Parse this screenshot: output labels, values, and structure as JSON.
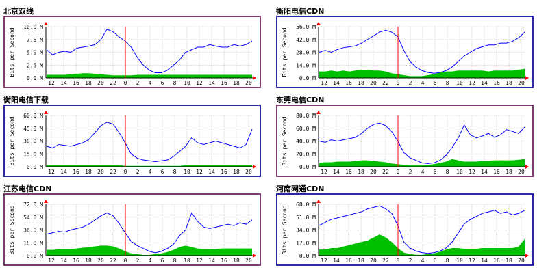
{
  "colors": {
    "frame_purple": "#7d3c6e",
    "frame_blue": "#2a2aa8",
    "in_series": "#00c000",
    "out_series": "#0000ff",
    "now_marker": "#ff0000",
    "grid": "#c8c8c8"
  },
  "axis": {
    "ylabel": "Bits per Second",
    "x_ticks": [
      "12",
      "14",
      "16",
      "18",
      "20",
      "22",
      "0",
      "2",
      "4",
      "6",
      "8",
      "10",
      "12",
      "14",
      "16",
      "18",
      "20"
    ]
  },
  "chart_data": [
    {
      "type": "area",
      "title": "北京双线",
      "frame": "purple",
      "ylabel": "Bits per Second",
      "y_ticks": [
        "0.0 M",
        "2.5 M",
        "5.0 M",
        "7.5 M",
        "10.0 M"
      ],
      "ylim": [
        0,
        10
      ],
      "y_unit": "M",
      "x_ticks": [
        "12",
        "14",
        "16",
        "18",
        "20",
        "22",
        "0",
        "2",
        "4",
        "6",
        "8",
        "10",
        "12",
        "14",
        "16",
        "18",
        "20"
      ],
      "now_index": 6,
      "series": [
        {
          "name": "in",
          "values": [
            0.6,
            0.6,
            0.6,
            0.6,
            0.7,
            0.8,
            0.9,
            0.9,
            0.8,
            0.7,
            0.6,
            0.5,
            0.5,
            0.5,
            0.5,
            0.6,
            0.6,
            0.6,
            0.6,
            0.6,
            0.6,
            0.6,
            0.6,
            0.6,
            0.6,
            0.6,
            0.6,
            0.6,
            0.6,
            0.6,
            0.6,
            0.6,
            0.6,
            0.6,
            0.6
          ]
        },
        {
          "name": "out",
          "values": [
            5.5,
            4.5,
            5.0,
            5.2,
            5.0,
            5.8,
            6.0,
            6.2,
            6.5,
            7.5,
            9.5,
            9.0,
            8.0,
            7.2,
            6.0,
            4.0,
            2.5,
            1.5,
            1.0,
            1.0,
            1.5,
            2.5,
            3.5,
            5.0,
            5.5,
            6.0,
            6.0,
            6.5,
            6.2,
            6.0,
            6.0,
            6.5,
            6.2,
            6.5,
            7.2
          ]
        }
      ]
    },
    {
      "type": "area",
      "title": "衡阳电信CDN",
      "frame": "blue",
      "ylabel": "Bits per Second",
      "y_ticks": [
        "0.0 M",
        "14.0 M",
        "28.0 M",
        "42.0 M",
        "56.0 M"
      ],
      "ylim": [
        0,
        56
      ],
      "y_unit": "M",
      "x_ticks": [
        "12",
        "14",
        "16",
        "18",
        "20",
        "22",
        "0",
        "2",
        "4",
        "6",
        "8",
        "10",
        "12",
        "14",
        "16",
        "18",
        "20"
      ],
      "now_index": 6,
      "series": [
        {
          "name": "in",
          "values": [
            7,
            7,
            8,
            7,
            8,
            7,
            8,
            9,
            9,
            8,
            8,
            7,
            5,
            4,
            3,
            2,
            2,
            2,
            3,
            4,
            6,
            7,
            7,
            8,
            8,
            8,
            8,
            8,
            7,
            8,
            8,
            8,
            8,
            9,
            10
          ]
        },
        {
          "name": "out",
          "values": [
            28,
            30,
            28,
            31,
            33,
            34,
            35,
            38,
            42,
            46,
            50,
            52,
            50,
            45,
            30,
            18,
            12,
            8,
            6,
            5,
            6,
            8,
            12,
            18,
            24,
            28,
            32,
            34,
            36,
            36,
            38,
            38,
            40,
            44,
            50
          ]
        }
      ]
    },
    {
      "type": "area",
      "title": "衡阳电信下载",
      "frame": "blue",
      "ylabel": "Bits per Second",
      "y_ticks": [
        "0.0 M",
        "15.0 M",
        "30.0 M",
        "45.0 M",
        "60.0 M"
      ],
      "ylim": [
        0,
        60
      ],
      "y_unit": "M",
      "x_ticks": [
        "12",
        "14",
        "16",
        "18",
        "20",
        "22",
        "0",
        "2",
        "4",
        "6",
        "8",
        "10",
        "12",
        "14",
        "16",
        "18",
        "20"
      ],
      "now_index": 6,
      "series": [
        {
          "name": "in",
          "values": [
            2,
            2,
            2,
            2,
            2,
            2,
            2,
            2,
            2,
            2,
            2,
            2,
            2,
            1,
            1,
            1,
            1,
            1,
            1,
            1,
            1,
            1,
            1,
            2,
            2,
            2,
            2,
            2,
            2,
            2,
            2,
            2,
            2,
            2,
            2
          ]
        },
        {
          "name": "out",
          "values": [
            24,
            22,
            26,
            25,
            24,
            26,
            28,
            32,
            40,
            48,
            52,
            50,
            40,
            28,
            15,
            10,
            8,
            7,
            6,
            7,
            8,
            12,
            18,
            24,
            34,
            28,
            26,
            28,
            30,
            28,
            26,
            24,
            22,
            26,
            44
          ]
        }
      ]
    },
    {
      "type": "area",
      "title": "东莞电信CDN",
      "frame": "purple",
      "ylabel": "Bits per Second",
      "y_ticks": [
        "0.0 M",
        "20.0 M",
        "40.0 M",
        "60.0 M",
        "80.0 M"
      ],
      "ylim": [
        0,
        80
      ],
      "y_unit": "M",
      "x_ticks": [
        "12",
        "14",
        "16",
        "18",
        "20",
        "22",
        "0",
        "2",
        "4",
        "6",
        "8",
        "10",
        "12",
        "14",
        "16",
        "18",
        "20"
      ],
      "now_index": 6,
      "series": [
        {
          "name": "in",
          "values": [
            6,
            7,
            7,
            8,
            8,
            8,
            9,
            10,
            10,
            9,
            8,
            7,
            5,
            4,
            3,
            2,
            2,
            2,
            3,
            4,
            6,
            8,
            12,
            10,
            8,
            8,
            8,
            9,
            9,
            10,
            10,
            10,
            10,
            11,
            12
          ]
        },
        {
          "name": "out",
          "values": [
            40,
            38,
            42,
            40,
            42,
            44,
            46,
            52,
            60,
            66,
            68,
            64,
            55,
            40,
            22,
            14,
            10,
            6,
            5,
            6,
            10,
            18,
            30,
            45,
            65,
            50,
            45,
            48,
            52,
            46,
            50,
            58,
            55,
            52,
            62
          ]
        }
      ]
    },
    {
      "type": "area",
      "title": "江苏电信CDN",
      "frame": "purple",
      "ylabel": "Bits per Second",
      "y_ticks": [
        "0.0 M",
        "18.0 M",
        "36.0 M",
        "54.0 M",
        "72.0 M"
      ],
      "ylim": [
        0,
        72
      ],
      "y_unit": "M",
      "x_ticks": [
        "12",
        "14",
        "16",
        "18",
        "20",
        "22",
        "0",
        "2",
        "4",
        "6",
        "8",
        "10",
        "12",
        "14",
        "16",
        "18",
        "20"
      ],
      "now_index": 6,
      "series": [
        {
          "name": "in",
          "values": [
            8,
            8,
            9,
            9,
            9,
            10,
            11,
            12,
            13,
            14,
            14,
            13,
            10,
            6,
            3,
            2,
            1,
            1,
            2,
            3,
            5,
            8,
            12,
            14,
            12,
            10,
            9,
            9,
            9,
            10,
            10,
            10,
            10,
            10,
            10
          ]
        },
        {
          "name": "out",
          "values": [
            30,
            32,
            34,
            33,
            36,
            38,
            40,
            44,
            50,
            56,
            60,
            56,
            45,
            32,
            20,
            14,
            10,
            6,
            4,
            6,
            10,
            16,
            28,
            36,
            60,
            48,
            40,
            38,
            40,
            42,
            44,
            42,
            46,
            44,
            50
          ]
        }
      ]
    },
    {
      "type": "area",
      "title": "河南网通CDN",
      "frame": "blue",
      "ylabel": "Bits per Second",
      "y_ticks": [
        "0.0 M",
        "17.0 M",
        "34.0 M",
        "51.0 M",
        "68.0 M"
      ],
      "ylim": [
        0,
        68
      ],
      "y_unit": "M",
      "x_ticks": [
        "12",
        "14",
        "16",
        "18",
        "20",
        "22",
        "0",
        "2",
        "4",
        "6",
        "8",
        "10",
        "12",
        "14",
        "16",
        "18",
        "20"
      ],
      "now_index": 6,
      "series": [
        {
          "name": "in",
          "values": [
            8,
            8,
            10,
            10,
            12,
            14,
            16,
            18,
            20,
            24,
            28,
            24,
            18,
            10,
            4,
            2,
            1,
            1,
            2,
            3,
            5,
            8,
            10,
            10,
            9,
            9,
            9,
            10,
            10,
            10,
            10,
            10,
            10,
            12,
            22
          ]
        },
        {
          "name": "out",
          "values": [
            40,
            44,
            48,
            50,
            52,
            54,
            56,
            58,
            62,
            64,
            66,
            62,
            56,
            40,
            18,
            10,
            6,
            4,
            3,
            4,
            6,
            10,
            18,
            30,
            42,
            48,
            52,
            56,
            58,
            60,
            56,
            58,
            54,
            56,
            60
          ]
        }
      ]
    }
  ]
}
